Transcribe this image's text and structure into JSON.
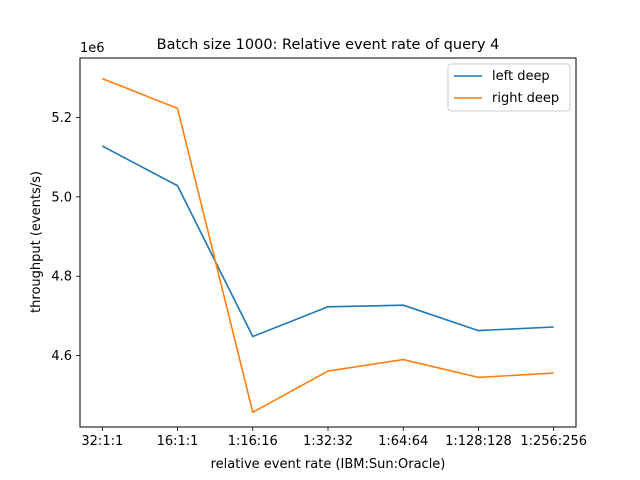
{
  "chart_data": {
    "type": "line",
    "title": "Batch size 1000: Relative event rate of query 4",
    "xlabel": "relative event rate (IBM:Sun:Oracle)",
    "ylabel": "throughput (events/s)",
    "y_offset_label": "1e6",
    "categories": [
      "32:1:1",
      "16:1:1",
      "1:16:16",
      "1:32:32",
      "1:64:64",
      "1:128:128",
      "1:256:256"
    ],
    "ylim": [
      4.42,
      5.35
    ],
    "yticks": [
      4.6,
      4.8,
      5.0,
      5.2
    ],
    "ytick_labels": [
      "4.6",
      "4.8",
      "5.0",
      "5.2"
    ],
    "grid": false,
    "legend_position": "upper right",
    "series": [
      {
        "name": "left deep",
        "color": "#1f77b4",
        "values": [
          5.128,
          5.028,
          4.648,
          4.723,
          4.727,
          4.663,
          4.672
        ]
      },
      {
        "name": "right deep",
        "color": "#ff7f0e",
        "values": [
          5.298,
          5.223,
          4.457,
          4.561,
          4.59,
          4.545,
          4.556
        ]
      }
    ]
  }
}
